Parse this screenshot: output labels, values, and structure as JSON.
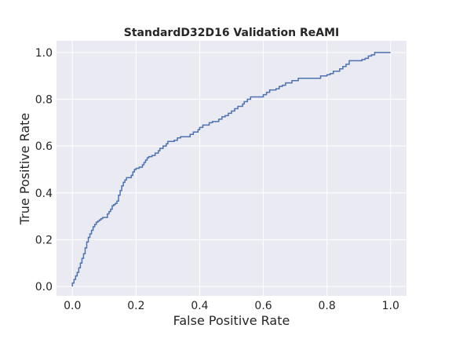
{
  "chart_data": {
    "type": "line",
    "title": "StandardD32D16 Validation ReAMI",
    "xlabel": "False Positive Rate",
    "ylabel": "True Positive Rate",
    "xlim": [
      -0.05,
      1.05
    ],
    "ylim": [
      -0.04,
      1.05
    ],
    "xticks": [
      "0.0",
      "0.2",
      "0.4",
      "0.6",
      "0.8",
      "1.0"
    ],
    "yticks": [
      "0.0",
      "0.2",
      "0.4",
      "0.6",
      "0.8",
      "1.0"
    ],
    "grid": true,
    "colors": {
      "background": "#eaeaf2",
      "grid": "#ffffff",
      "line": "#4c72b0"
    },
    "series": [
      {
        "x": [
          0.0,
          0.0,
          0.005,
          0.005,
          0.01,
          0.01,
          0.015,
          0.015,
          0.02,
          0.02,
          0.025,
          0.025,
          0.03,
          0.03,
          0.035,
          0.035,
          0.04,
          0.04,
          0.045,
          0.045,
          0.05,
          0.05,
          0.055,
          0.055,
          0.06,
          0.06,
          0.065,
          0.065,
          0.07,
          0.07,
          0.075,
          0.075,
          0.08,
          0.08,
          0.085,
          0.085,
          0.09,
          0.09,
          0.095,
          0.095,
          0.11,
          0.11,
          0.115,
          0.115,
          0.12,
          0.12,
          0.125,
          0.125,
          0.13,
          0.13,
          0.135,
          0.135,
          0.14,
          0.14,
          0.145,
          0.145,
          0.15,
          0.15,
          0.155,
          0.155,
          0.16,
          0.16,
          0.165,
          0.165,
          0.17,
          0.17,
          0.185,
          0.185,
          0.19,
          0.19,
          0.195,
          0.195,
          0.2,
          0.2,
          0.21,
          0.21,
          0.22,
          0.22,
          0.225,
          0.225,
          0.23,
          0.23,
          0.235,
          0.235,
          0.24,
          0.24,
          0.25,
          0.25,
          0.26,
          0.26,
          0.27,
          0.27,
          0.275,
          0.275,
          0.285,
          0.285,
          0.295,
          0.295,
          0.3,
          0.3,
          0.32,
          0.32,
          0.33,
          0.33,
          0.34,
          0.34,
          0.37,
          0.37,
          0.38,
          0.38,
          0.395,
          0.395,
          0.4,
          0.4,
          0.41,
          0.41,
          0.43,
          0.43,
          0.44,
          0.44,
          0.46,
          0.46,
          0.47,
          0.47,
          0.48,
          0.48,
          0.49,
          0.49,
          0.5,
          0.5,
          0.51,
          0.51,
          0.52,
          0.52,
          0.535,
          0.535,
          0.54,
          0.54,
          0.55,
          0.55,
          0.56,
          0.56,
          0.6,
          0.6,
          0.61,
          0.61,
          0.62,
          0.62,
          0.64,
          0.64,
          0.65,
          0.65,
          0.66,
          0.66,
          0.67,
          0.67,
          0.69,
          0.69,
          0.71,
          0.71,
          0.78,
          0.78,
          0.8,
          0.8,
          0.81,
          0.81,
          0.82,
          0.82,
          0.84,
          0.84,
          0.85,
          0.85,
          0.86,
          0.86,
          0.87,
          0.87,
          0.91,
          0.91,
          0.92,
          0.92,
          0.93,
          0.93,
          0.94,
          0.94,
          0.95,
          0.95,
          1.0
        ],
        "y": [
          0.0,
          0.015,
          0.015,
          0.03,
          0.03,
          0.045,
          0.045,
          0.06,
          0.06,
          0.08,
          0.08,
          0.1,
          0.1,
          0.12,
          0.12,
          0.14,
          0.14,
          0.165,
          0.165,
          0.19,
          0.19,
          0.21,
          0.21,
          0.225,
          0.225,
          0.24,
          0.24,
          0.255,
          0.255,
          0.265,
          0.265,
          0.275,
          0.275,
          0.28,
          0.28,
          0.285,
          0.285,
          0.29,
          0.29,
          0.295,
          0.295,
          0.31,
          0.31,
          0.32,
          0.32,
          0.33,
          0.33,
          0.345,
          0.345,
          0.35,
          0.35,
          0.355,
          0.355,
          0.365,
          0.365,
          0.39,
          0.39,
          0.41,
          0.41,
          0.43,
          0.43,
          0.445,
          0.445,
          0.455,
          0.455,
          0.465,
          0.465,
          0.475,
          0.475,
          0.49,
          0.49,
          0.5,
          0.5,
          0.505,
          0.505,
          0.51,
          0.51,
          0.52,
          0.52,
          0.53,
          0.53,
          0.54,
          0.54,
          0.55,
          0.55,
          0.555,
          0.555,
          0.56,
          0.56,
          0.57,
          0.57,
          0.58,
          0.58,
          0.59,
          0.59,
          0.6,
          0.6,
          0.61,
          0.61,
          0.62,
          0.62,
          0.625,
          0.625,
          0.635,
          0.635,
          0.64,
          0.64,
          0.65,
          0.65,
          0.66,
          0.66,
          0.67,
          0.67,
          0.68,
          0.68,
          0.69,
          0.69,
          0.7,
          0.7,
          0.705,
          0.705,
          0.715,
          0.715,
          0.725,
          0.725,
          0.73,
          0.73,
          0.74,
          0.74,
          0.75,
          0.75,
          0.76,
          0.76,
          0.77,
          0.77,
          0.78,
          0.78,
          0.79,
          0.79,
          0.8,
          0.8,
          0.81,
          0.81,
          0.82,
          0.82,
          0.83,
          0.83,
          0.84,
          0.84,
          0.845,
          0.845,
          0.855,
          0.855,
          0.86,
          0.86,
          0.87,
          0.87,
          0.88,
          0.88,
          0.89,
          0.89,
          0.9,
          0.9,
          0.905,
          0.905,
          0.91,
          0.91,
          0.92,
          0.92,
          0.93,
          0.93,
          0.94,
          0.94,
          0.95,
          0.95,
          0.965,
          0.965,
          0.97,
          0.97,
          0.975,
          0.975,
          0.985,
          0.985,
          0.99,
          0.99,
          1.0,
          1.0
        ]
      }
    ]
  }
}
